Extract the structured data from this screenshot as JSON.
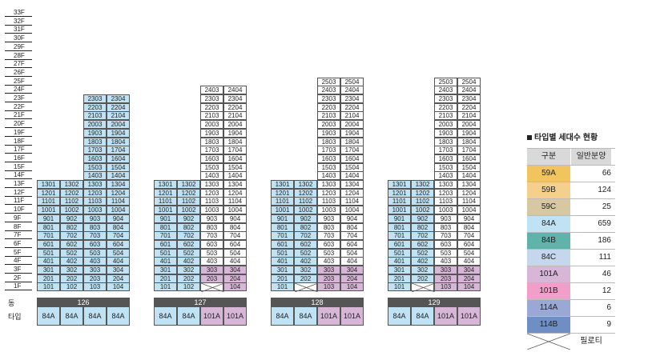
{
  "labels": {
    "dong": "동",
    "type": "타입"
  },
  "floors": [
    "33F",
    "32F",
    "31F",
    "30F",
    "29F",
    "28F",
    "27F",
    "26F",
    "25F",
    "24F",
    "23F",
    "22F",
    "21F",
    "20F",
    "19F",
    "18F",
    "17F",
    "16F",
    "15F",
    "14F",
    "13F",
    "12F",
    "11F",
    "10F",
    "9F",
    "8F",
    "7F",
    "6F",
    "5F",
    "4F",
    "3F",
    "2F",
    "1F"
  ],
  "colors": {
    "59A": "#f2c45e",
    "59B": "#f4d08c",
    "59C": "#d7c8a2",
    "84A": "#bfe3f5",
    "84B": "#5fb3a8",
    "84C": "#c5d7ec",
    "101A": "#d7b6d8",
    "101B": "#f0a0c8",
    "114A": "#9aa8d6",
    "114B": "#6f8fc4",
    "empty": "#ffffff"
  },
  "buildings": [
    {
      "dong": "126",
      "types": [
        "84A",
        "84A",
        "84A",
        "84A"
      ],
      "top": 23,
      "upper_from": 14,
      "rules": {
        "lower": [
          "84A",
          "84A",
          "84A",
          "84A"
        ],
        "upper": [
          null,
          null,
          "84A",
          "84A"
        ]
      },
      "pilotis": []
    },
    {
      "dong": "127",
      "types": [
        "84A",
        "84A",
        "101A",
        "101A"
      ],
      "top": 24,
      "upper_from": 14,
      "rules": {
        "lower": [
          "84A",
          "84A",
          "empty",
          "empty"
        ],
        "upper": [
          null,
          null,
          "empty",
          "empty"
        ],
        "low_override": {
          "3": [
            "84A",
            "84A",
            "101A",
            "101A"
          ],
          "2": [
            "84A",
            "84A",
            "101A",
            "101A"
          ],
          "1": [
            "84A",
            "84A",
            "x",
            "101A"
          ]
        }
      },
      "pilotis": []
    },
    {
      "dong": "128",
      "types": [
        "84A",
        "84A",
        "101A",
        "101A"
      ],
      "top": 25,
      "upper_from": 14,
      "rules": {
        "lower": [
          "84A",
          "84A",
          "empty",
          "empty"
        ],
        "upper": [
          null,
          null,
          "empty",
          "empty"
        ],
        "low_override": {
          "3": [
            "84A",
            "84A",
            "101A",
            "101A"
          ],
          "2": [
            "84A",
            "84A",
            "101A",
            "101A"
          ],
          "1": [
            "84A",
            "x",
            "101A",
            "101A"
          ]
        }
      },
      "pilotis": []
    },
    {
      "dong": "129",
      "types": [
        "84A",
        "84A",
        "101A",
        "101A"
      ],
      "top": 25,
      "upper_from": 14,
      "rules": {
        "lower": [
          "84A",
          "84A",
          "empty",
          "empty"
        ],
        "upper": [
          null,
          null,
          "empty",
          "empty"
        ],
        "low_override": {
          "3": [
            "84A",
            "84A",
            "101A",
            "101A"
          ],
          "2": [
            "84A",
            "84A",
            "101A",
            "101A"
          ],
          "1": [
            "84A",
            "x",
            "101A",
            "101A"
          ]
        }
      },
      "pilotis": []
    }
  ],
  "legend": {
    "title": "타입별 세대수 현황",
    "header": {
      "type": "구분",
      "count": "일반분양"
    },
    "rows": [
      {
        "type": "59A",
        "count": "66",
        "color": "#f2c45e"
      },
      {
        "type": "59B",
        "count": "124",
        "color": "#f4d08c"
      },
      {
        "type": "59C",
        "count": "25",
        "color": "#d7c8a2"
      },
      {
        "type": "84A",
        "count": "659",
        "color": "#bfe3f5"
      },
      {
        "type": "84B",
        "count": "186",
        "color": "#5fb3a8"
      },
      {
        "type": "84C",
        "count": "111",
        "color": "#c5d7ec"
      },
      {
        "type": "101A",
        "count": "46",
        "color": "#d7b6d8"
      },
      {
        "type": "101B",
        "count": "12",
        "color": "#f0a0c8"
      },
      {
        "type": "114A",
        "count": "6",
        "color": "#9aa8d6"
      },
      {
        "type": "114B",
        "count": "9",
        "color": "#6f8fc4"
      }
    ],
    "pilotis_label": "필로티"
  }
}
